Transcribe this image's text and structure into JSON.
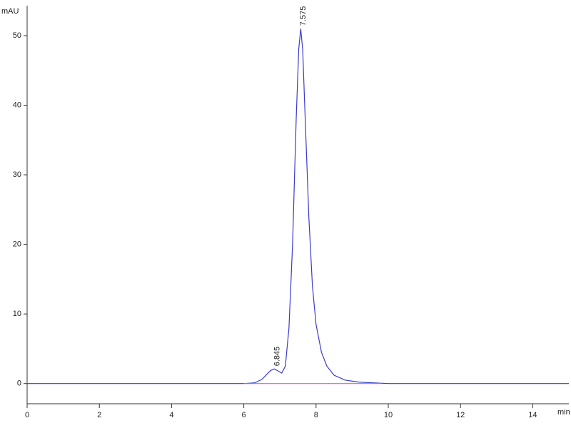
{
  "chart_data": {
    "type": "line",
    "y_label": "mAU",
    "x_label": "min",
    "xlim": [
      0,
      15
    ],
    "ylim": [
      -2.9,
      54.3
    ],
    "xticks": [
      0,
      2,
      4,
      6,
      8,
      10,
      12,
      14
    ],
    "yticks": [
      0,
      10,
      20,
      30,
      40,
      50
    ],
    "series": [
      {
        "color": "#3a3ad0",
        "x": [
          0,
          1,
          2,
          3,
          4,
          5,
          6,
          6.3,
          6.5,
          6.65,
          6.75,
          6.845,
          6.95,
          7.05,
          7.15,
          7.25,
          7.35,
          7.45,
          7.52,
          7.575,
          7.63,
          7.7,
          7.8,
          7.9,
          8.0,
          8.15,
          8.3,
          8.5,
          8.8,
          9.2,
          10,
          12,
          14,
          15
        ],
        "values": [
          0,
          0,
          0,
          0,
          0,
          0,
          0,
          0.1,
          0.6,
          1.4,
          1.9,
          2.1,
          1.8,
          1.5,
          2.5,
          8,
          20,
          38,
          48,
          51,
          48,
          38,
          24,
          14,
          8.5,
          4.5,
          2.5,
          1.2,
          0.5,
          0.2,
          0,
          0,
          0,
          0
        ]
      },
      {
        "color": "#ff40ff",
        "x": [
          6,
          9.8
        ],
        "values": [
          0,
          0
        ]
      }
    ],
    "peaks": [
      {
        "label": "6.845",
        "x": 6.845,
        "y": 2.1
      },
      {
        "label": "7.575",
        "x": 7.575,
        "y": 51
      }
    ]
  }
}
